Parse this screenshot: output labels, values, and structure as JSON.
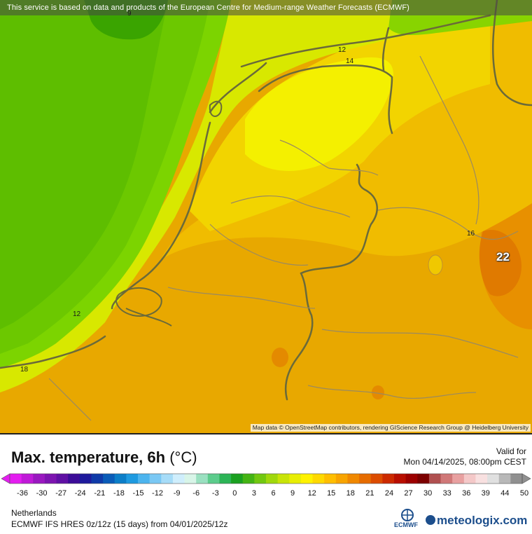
{
  "map": {
    "attribution_top": "This service is based on data and products of the European Centre for Medium-range Weather Forecasts (ECMWF)",
    "attribution_bottom": "Map data © OpenStreetMap contributors, rendering GIScience Research Group @ Heidelberg University",
    "contour_labels": [
      "9",
      "12",
      "14",
      "16",
      "12",
      "18"
    ],
    "max_value_label": "22"
  },
  "header": {
    "title": "Max. temperature, 6h",
    "unit": "(°C)",
    "valid_label": "Valid for",
    "valid_time": "Mon 04/14/2025, 08:00pm CEST"
  },
  "colorbar": {
    "ticks": [
      "-36",
      "-30",
      "-27",
      "-24",
      "-21",
      "-18",
      "-15",
      "-12",
      "-9",
      "-6",
      "-3",
      "0",
      "3",
      "6",
      "9",
      "12",
      "15",
      "18",
      "21",
      "24",
      "27",
      "30",
      "33",
      "36",
      "39",
      "44",
      "50"
    ],
    "colors": [
      "#e41df0",
      "#c01ad8",
      "#9a18c0",
      "#7d14b0",
      "#6010a4",
      "#3c0c98",
      "#1e1a9c",
      "#0f3aa8",
      "#0a5cb8",
      "#0c7ec8",
      "#1e9ae0",
      "#4cb4ee",
      "#7ac8f4",
      "#a6dcf8",
      "#cfeefc",
      "#d8f5e8",
      "#9ae0c0",
      "#5ccc8c",
      "#2cb456",
      "#1aa020",
      "#44b414",
      "#72c810",
      "#a0d80c",
      "#c8e408",
      "#e8ee04",
      "#fff200",
      "#ffd900",
      "#ffbe00",
      "#f8a400",
      "#f08800",
      "#e66c00",
      "#dc4c00",
      "#cc2a00",
      "#b80e00",
      "#9c0000",
      "#7c0000",
      "#b05050",
      "#d07878",
      "#e8a0a0",
      "#f4c8c8",
      "#f8e0e0",
      "#e0e0e0",
      "#b8b8b8",
      "#909090"
    ]
  },
  "footer": {
    "region": "Netherlands",
    "model_run": "ECMWF IFS HRES 0z/12z (15 days) from 04/01/2025/12z",
    "ecmwf_logo_text": "ECMWF",
    "brand": "meteologix.com"
  }
}
